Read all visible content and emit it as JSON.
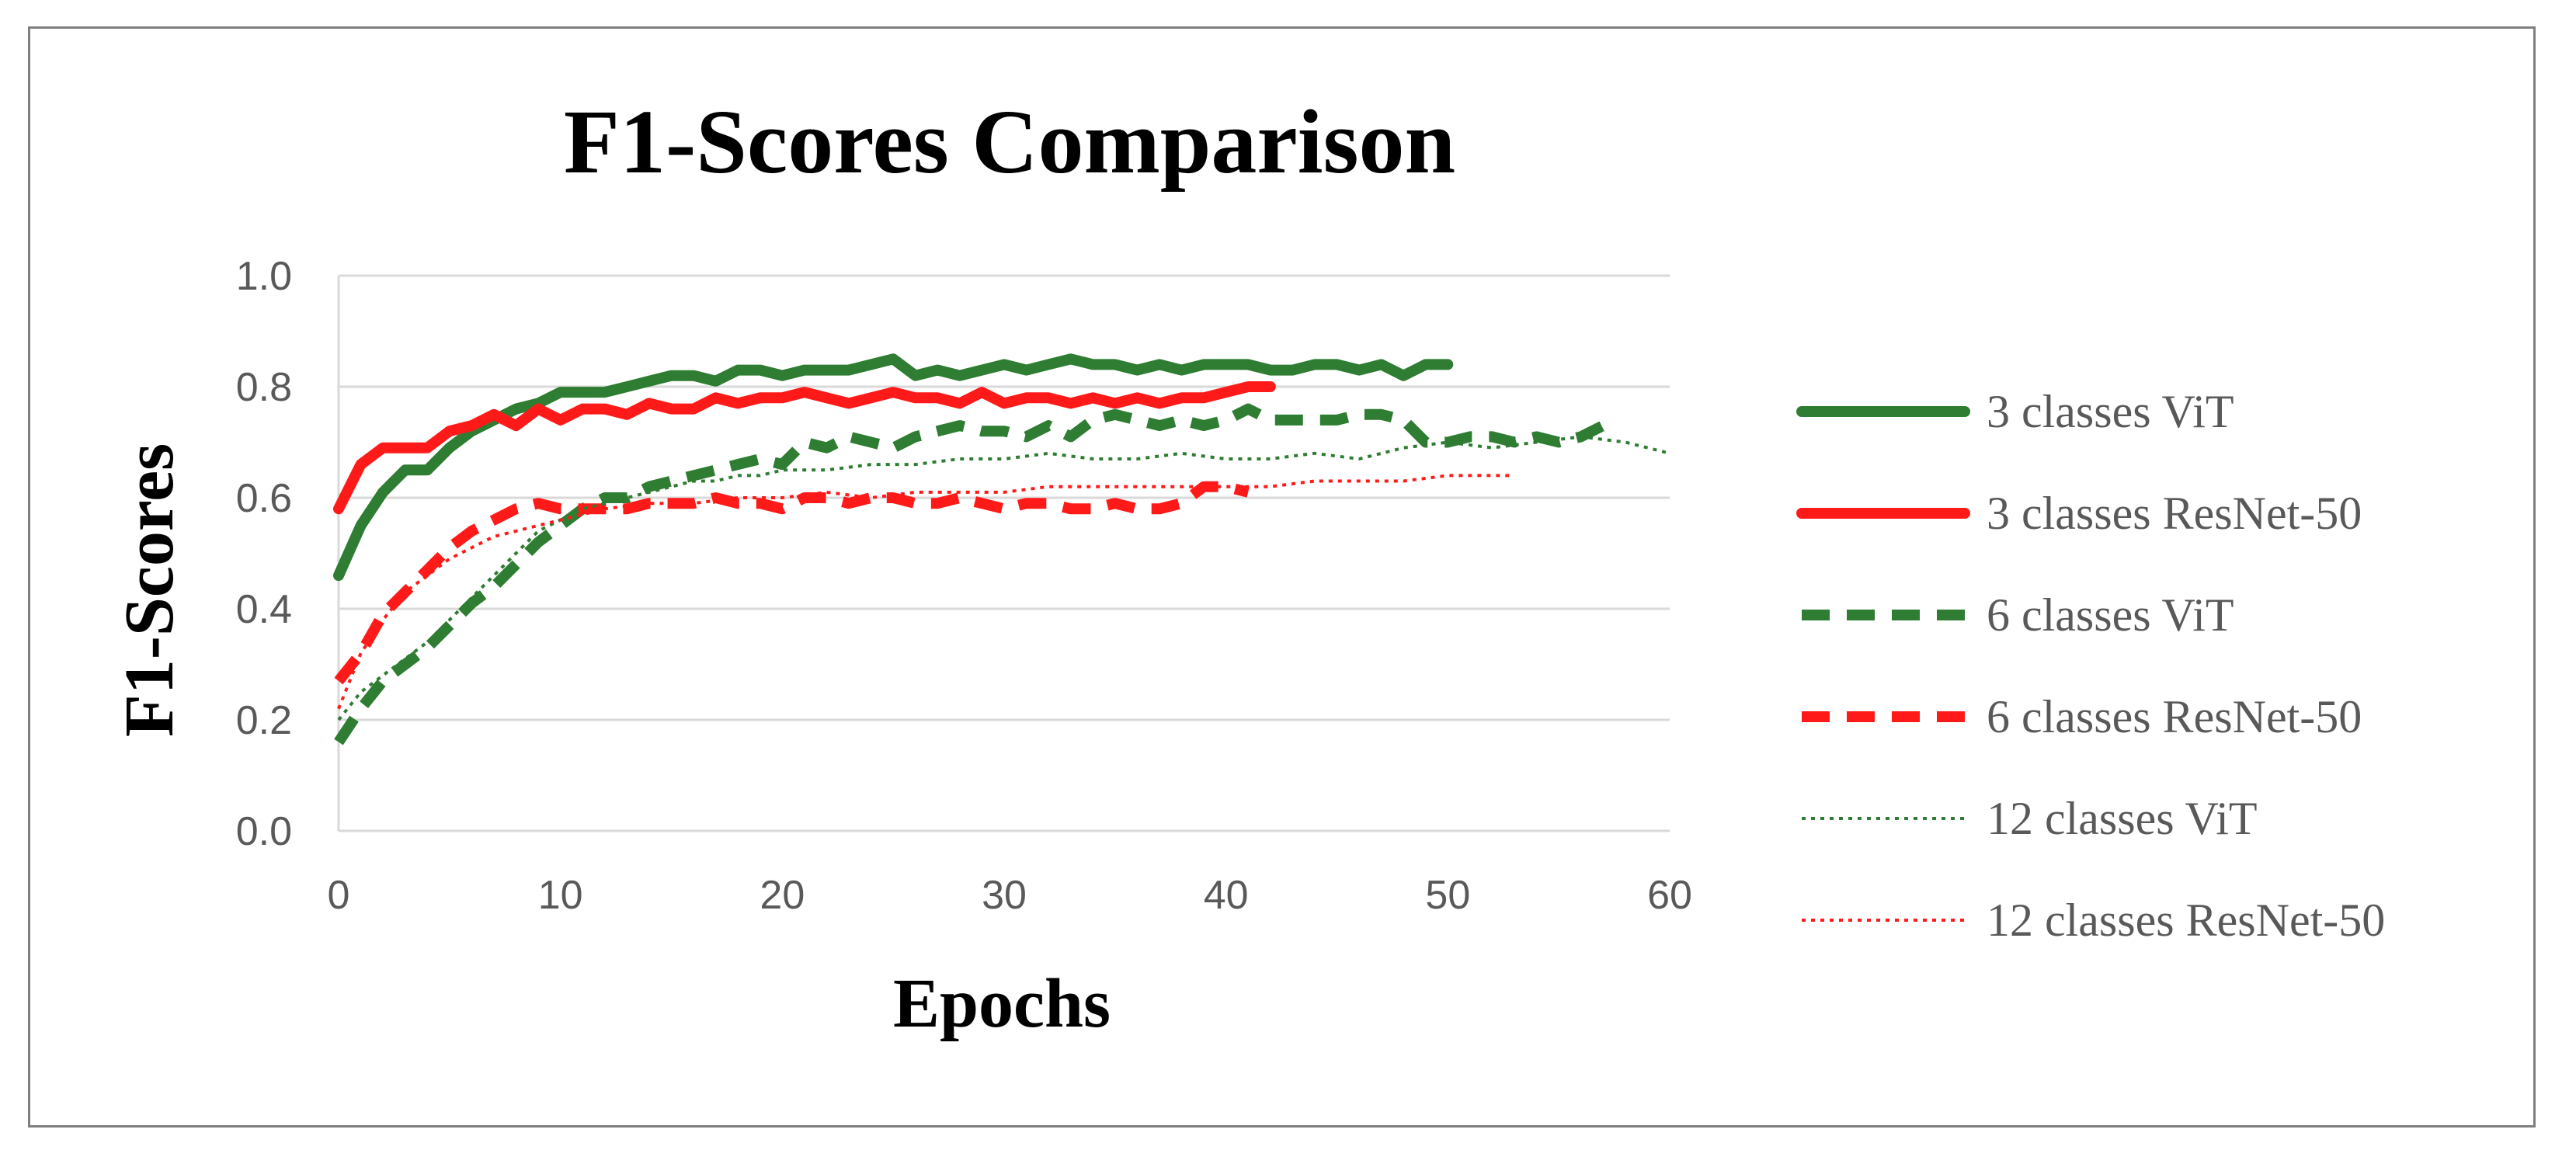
{
  "chart_data": {
    "type": "line",
    "title": "F1-Scores Comparison",
    "xlabel": "Epochs",
    "ylabel": "F1-Scores",
    "xlim": [
      0,
      60
    ],
    "ylim": [
      0,
      1.0
    ],
    "x_ticks": [
      "0",
      "10",
      "20",
      "30",
      "40",
      "50",
      "60"
    ],
    "y_ticks": [
      "0.0",
      "0.2",
      "0.4",
      "0.6",
      "0.8",
      "1.0"
    ],
    "grid": "horizontal",
    "legend_position": "right",
    "series": [
      {
        "name": "3 classes ViT",
        "color": "#2e7d32",
        "style": "solid",
        "points": [
          [
            0,
            0.46
          ],
          [
            1,
            0.55
          ],
          [
            2,
            0.61
          ],
          [
            3,
            0.65
          ],
          [
            4,
            0.65
          ],
          [
            5,
            0.69
          ],
          [
            6,
            0.72
          ],
          [
            7,
            0.74
          ],
          [
            8,
            0.76
          ],
          [
            9,
            0.77
          ],
          [
            10,
            0.79
          ],
          [
            11,
            0.79
          ],
          [
            12,
            0.79
          ],
          [
            13,
            0.8
          ],
          [
            14,
            0.81
          ],
          [
            15,
            0.82
          ],
          [
            16,
            0.82
          ],
          [
            17,
            0.81
          ],
          [
            18,
            0.83
          ],
          [
            19,
            0.83
          ],
          [
            20,
            0.82
          ],
          [
            21,
            0.83
          ],
          [
            22,
            0.83
          ],
          [
            23,
            0.83
          ],
          [
            24,
            0.84
          ],
          [
            25,
            0.85
          ],
          [
            26,
            0.82
          ],
          [
            27,
            0.83
          ],
          [
            28,
            0.82
          ],
          [
            29,
            0.83
          ],
          [
            30,
            0.84
          ],
          [
            31,
            0.83
          ],
          [
            32,
            0.84
          ],
          [
            33,
            0.85
          ],
          [
            34,
            0.84
          ],
          [
            35,
            0.84
          ],
          [
            36,
            0.83
          ],
          [
            37,
            0.84
          ],
          [
            38,
            0.83
          ],
          [
            39,
            0.84
          ],
          [
            40,
            0.84
          ],
          [
            41,
            0.84
          ],
          [
            42,
            0.83
          ],
          [
            43,
            0.83
          ],
          [
            44,
            0.84
          ],
          [
            45,
            0.84
          ],
          [
            46,
            0.83
          ],
          [
            47,
            0.84
          ],
          [
            48,
            0.82
          ],
          [
            49,
            0.84
          ],
          [
            50,
            0.84
          ]
        ]
      },
      {
        "name": "3 classes ResNet-50",
        "color": "#ff1a1a",
        "style": "solid",
        "points": [
          [
            0,
            0.58
          ],
          [
            1,
            0.66
          ],
          [
            2,
            0.69
          ],
          [
            3,
            0.69
          ],
          [
            4,
            0.69
          ],
          [
            5,
            0.72
          ],
          [
            6,
            0.73
          ],
          [
            7,
            0.75
          ],
          [
            8,
            0.73
          ],
          [
            9,
            0.76
          ],
          [
            10,
            0.74
          ],
          [
            11,
            0.76
          ],
          [
            12,
            0.76
          ],
          [
            13,
            0.75
          ],
          [
            14,
            0.77
          ],
          [
            15,
            0.76
          ],
          [
            16,
            0.76
          ],
          [
            17,
            0.78
          ],
          [
            18,
            0.77
          ],
          [
            19,
            0.78
          ],
          [
            20,
            0.78
          ],
          [
            21,
            0.79
          ],
          [
            22,
            0.78
          ],
          [
            23,
            0.77
          ],
          [
            24,
            0.78
          ],
          [
            25,
            0.79
          ],
          [
            26,
            0.78
          ],
          [
            27,
            0.78
          ],
          [
            28,
            0.77
          ],
          [
            29,
            0.79
          ],
          [
            30,
            0.77
          ],
          [
            31,
            0.78
          ],
          [
            32,
            0.78
          ],
          [
            33,
            0.77
          ],
          [
            34,
            0.78
          ],
          [
            35,
            0.77
          ],
          [
            36,
            0.78
          ],
          [
            37,
            0.77
          ],
          [
            38,
            0.78
          ],
          [
            39,
            0.78
          ],
          [
            40,
            0.79
          ],
          [
            41,
            0.8
          ],
          [
            42,
            0.8
          ]
        ]
      },
      {
        "name": "6 classes ViT",
        "color": "#2e7d32",
        "style": "dashed",
        "points": [
          [
            0,
            0.16
          ],
          [
            1,
            0.22
          ],
          [
            2,
            0.27
          ],
          [
            3,
            0.3
          ],
          [
            4,
            0.33
          ],
          [
            5,
            0.37
          ],
          [
            6,
            0.41
          ],
          [
            7,
            0.44
          ],
          [
            8,
            0.48
          ],
          [
            9,
            0.52
          ],
          [
            10,
            0.55
          ],
          [
            11,
            0.58
          ],
          [
            12,
            0.6
          ],
          [
            13,
            0.6
          ],
          [
            14,
            0.62
          ],
          [
            15,
            0.63
          ],
          [
            16,
            0.64
          ],
          [
            17,
            0.65
          ],
          [
            18,
            0.66
          ],
          [
            19,
            0.67
          ],
          [
            20,
            0.66
          ],
          [
            21,
            0.7
          ],
          [
            22,
            0.69
          ],
          [
            23,
            0.71
          ],
          [
            24,
            0.7
          ],
          [
            25,
            0.69
          ],
          [
            26,
            0.71
          ],
          [
            27,
            0.72
          ],
          [
            28,
            0.73
          ],
          [
            29,
            0.72
          ],
          [
            30,
            0.72
          ],
          [
            31,
            0.71
          ],
          [
            32,
            0.73
          ],
          [
            33,
            0.71
          ],
          [
            34,
            0.74
          ],
          [
            35,
            0.75
          ],
          [
            36,
            0.74
          ],
          [
            37,
            0.73
          ],
          [
            38,
            0.74
          ],
          [
            39,
            0.73
          ],
          [
            40,
            0.74
          ],
          [
            41,
            0.76
          ],
          [
            42,
            0.74
          ],
          [
            43,
            0.74
          ],
          [
            44,
            0.74
          ],
          [
            45,
            0.74
          ],
          [
            46,
            0.75
          ],
          [
            47,
            0.75
          ],
          [
            48,
            0.74
          ],
          [
            49,
            0.7
          ],
          [
            50,
            0.7
          ],
          [
            51,
            0.71
          ],
          [
            52,
            0.71
          ],
          [
            53,
            0.7
          ],
          [
            54,
            0.71
          ],
          [
            55,
            0.7
          ],
          [
            56,
            0.71
          ],
          [
            57,
            0.73
          ]
        ]
      },
      {
        "name": "6 classes ResNet-50",
        "color": "#ff1a1a",
        "style": "dashed",
        "points": [
          [
            0,
            0.27
          ],
          [
            1,
            0.32
          ],
          [
            2,
            0.39
          ],
          [
            3,
            0.43
          ],
          [
            4,
            0.47
          ],
          [
            5,
            0.51
          ],
          [
            6,
            0.54
          ],
          [
            7,
            0.56
          ],
          [
            8,
            0.58
          ],
          [
            9,
            0.59
          ],
          [
            10,
            0.58
          ],
          [
            11,
            0.58
          ],
          [
            12,
            0.58
          ],
          [
            13,
            0.58
          ],
          [
            14,
            0.59
          ],
          [
            15,
            0.59
          ],
          [
            16,
            0.59
          ],
          [
            17,
            0.6
          ],
          [
            18,
            0.59
          ],
          [
            19,
            0.59
          ],
          [
            20,
            0.58
          ],
          [
            21,
            0.6
          ],
          [
            22,
            0.6
          ],
          [
            23,
            0.59
          ],
          [
            24,
            0.6
          ],
          [
            25,
            0.6
          ],
          [
            26,
            0.59
          ],
          [
            27,
            0.59
          ],
          [
            28,
            0.6
          ],
          [
            29,
            0.59
          ],
          [
            30,
            0.58
          ],
          [
            31,
            0.59
          ],
          [
            32,
            0.59
          ],
          [
            33,
            0.58
          ],
          [
            34,
            0.58
          ],
          [
            35,
            0.59
          ],
          [
            36,
            0.58
          ],
          [
            37,
            0.58
          ],
          [
            38,
            0.59
          ],
          [
            39,
            0.62
          ],
          [
            40,
            0.62
          ],
          [
            41,
            0.61
          ]
        ]
      },
      {
        "name": "12 classes ViT",
        "color": "#2e7d32",
        "style": "dotted",
        "points": [
          [
            0,
            0.2
          ],
          [
            1,
            0.25
          ],
          [
            2,
            0.28
          ],
          [
            3,
            0.31
          ],
          [
            4,
            0.34
          ],
          [
            5,
            0.38
          ],
          [
            6,
            0.42
          ],
          [
            7,
            0.46
          ],
          [
            8,
            0.5
          ],
          [
            9,
            0.54
          ],
          [
            10,
            0.56
          ],
          [
            11,
            0.58
          ],
          [
            12,
            0.59
          ],
          [
            13,
            0.6
          ],
          [
            14,
            0.61
          ],
          [
            15,
            0.62
          ],
          [
            16,
            0.63
          ],
          [
            17,
            0.63
          ],
          [
            18,
            0.64
          ],
          [
            19,
            0.64
          ],
          [
            20,
            0.65
          ],
          [
            22,
            0.65
          ],
          [
            24,
            0.66
          ],
          [
            26,
            0.66
          ],
          [
            28,
            0.67
          ],
          [
            30,
            0.67
          ],
          [
            32,
            0.68
          ],
          [
            34,
            0.67
          ],
          [
            36,
            0.67
          ],
          [
            38,
            0.68
          ],
          [
            40,
            0.67
          ],
          [
            42,
            0.67
          ],
          [
            44,
            0.68
          ],
          [
            46,
            0.67
          ],
          [
            48,
            0.69
          ],
          [
            50,
            0.7
          ],
          [
            52,
            0.69
          ],
          [
            54,
            0.7
          ],
          [
            56,
            0.71
          ],
          [
            58,
            0.7
          ],
          [
            60,
            0.68
          ]
        ]
      },
      {
        "name": "12 classes ResNet-50",
        "color": "#ff1a1a",
        "style": "dotted",
        "points": [
          [
            0,
            0.22
          ],
          [
            1,
            0.32
          ],
          [
            2,
            0.38
          ],
          [
            3,
            0.43
          ],
          [
            4,
            0.46
          ],
          [
            5,
            0.49
          ],
          [
            6,
            0.51
          ],
          [
            7,
            0.53
          ],
          [
            8,
            0.54
          ],
          [
            9,
            0.55
          ],
          [
            10,
            0.56
          ],
          [
            11,
            0.57
          ],
          [
            12,
            0.58
          ],
          [
            14,
            0.59
          ],
          [
            16,
            0.59
          ],
          [
            18,
            0.6
          ],
          [
            20,
            0.6
          ],
          [
            22,
            0.61
          ],
          [
            24,
            0.6
          ],
          [
            26,
            0.61
          ],
          [
            28,
            0.61
          ],
          [
            30,
            0.61
          ],
          [
            32,
            0.62
          ],
          [
            34,
            0.62
          ],
          [
            36,
            0.62
          ],
          [
            38,
            0.62
          ],
          [
            40,
            0.62
          ],
          [
            42,
            0.62
          ],
          [
            44,
            0.63
          ],
          [
            46,
            0.63
          ],
          [
            48,
            0.63
          ],
          [
            50,
            0.64
          ],
          [
            52,
            0.64
          ],
          [
            53,
            0.64
          ]
        ]
      }
    ]
  }
}
